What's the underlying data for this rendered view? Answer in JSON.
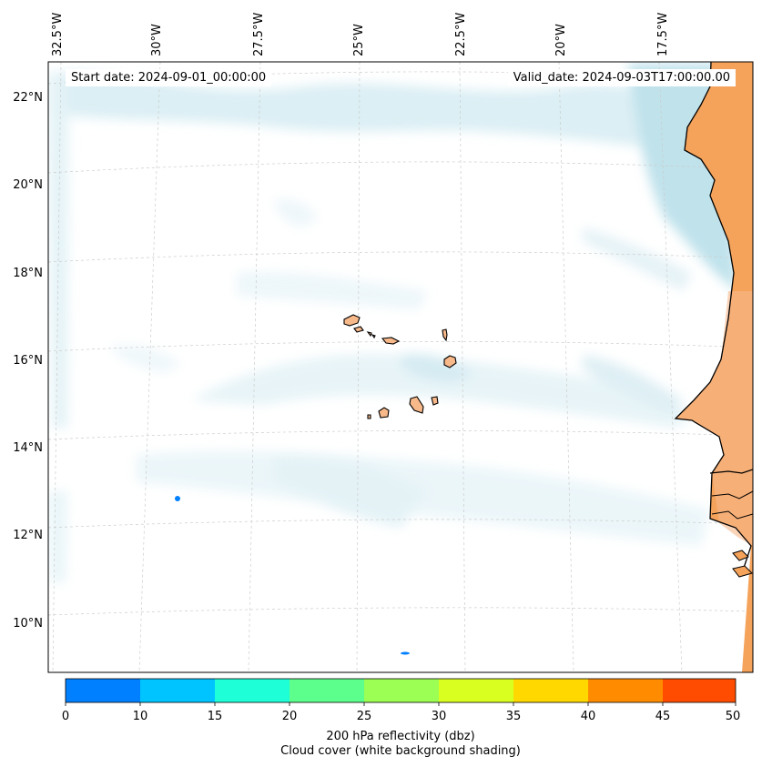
{
  "map": {
    "start_date_label": "Start date: 2024-09-01_00:00:00",
    "valid_date_label": "Valid_date: 2024-09-03T17:00:00.00",
    "lon_ticks": [
      "32.5°W",
      "30°W",
      "27.5°W",
      "25°W",
      "22.5°W",
      "20°W",
      "17.5°W"
    ],
    "lat_ticks": [
      "22°N",
      "20°N",
      "18°N",
      "16°N",
      "14°N",
      "12°N",
      "10°N"
    ],
    "land_color": "#f5a25a",
    "cloud_color": "#add8e6",
    "coastline_color": "#000000",
    "grid_color": "#cccccc"
  },
  "colorbar": {
    "title": "200 hPa reflectivity (dbz)",
    "subtitle": "Cloud cover (white background shading)",
    "ticks": [
      "0",
      "10",
      "15",
      "20",
      "25",
      "30",
      "35",
      "40",
      "45",
      "50"
    ],
    "colors": [
      "#0080ff",
      "#00c4ff",
      "#1effd8",
      "#5cff8c",
      "#9cff54",
      "#d8ff20",
      "#ffd800",
      "#ff8c00",
      "#ff4c00"
    ]
  }
}
